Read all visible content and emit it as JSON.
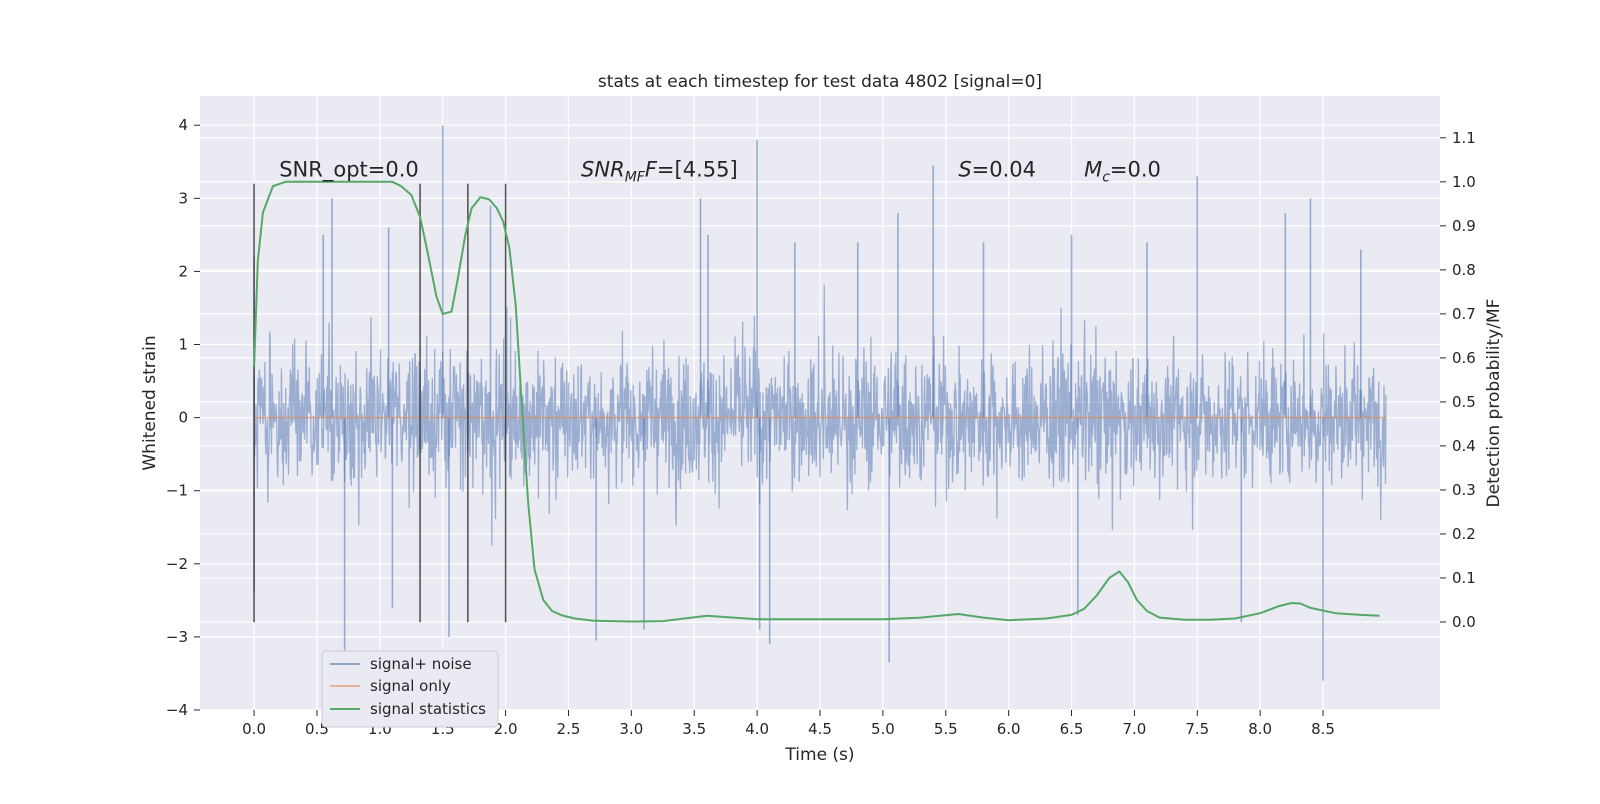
{
  "chart_data": {
    "type": "line",
    "title": "stats at each timestep for test data 4802 [signal=0]",
    "xlabel": "Time (s)",
    "ylabel": "Whitened strain",
    "y2label": "Detection probability/MF",
    "xlim": [
      -0.43,
      9.43
    ],
    "ylim": [
      -4.0,
      4.4
    ],
    "y2lim": [
      -0.2,
      1.195
    ],
    "x_ticks": [
      0.0,
      0.5,
      1.0,
      1.5,
      2.0,
      2.5,
      3.0,
      3.5,
      4.0,
      4.5,
      5.0,
      5.5,
      6.0,
      6.5,
      7.0,
      7.5,
      8.0,
      8.5
    ],
    "x_tick_labels": [
      "0.0",
      "0.5",
      "1.0",
      "1.5",
      "2.0",
      "2.5",
      "3.0",
      "3.5",
      "4.0",
      "4.5",
      "5.0",
      "5.5",
      "6.0",
      "6.5",
      "7.0",
      "7.5",
      "8.0",
      "8.5"
    ],
    "y_ticks": [
      -4,
      -3,
      -2,
      -1,
      0,
      1,
      2,
      3,
      4
    ],
    "y_tick_labels": [
      "−4",
      "−3",
      "−2",
      "−1",
      "0",
      "1",
      "2",
      "3",
      "4"
    ],
    "y2_ticks": [
      0.0,
      0.1,
      0.2,
      0.3,
      0.4,
      0.5,
      0.6,
      0.7,
      0.8,
      0.9,
      1.0,
      1.1
    ],
    "y2_tick_labels": [
      "0.0",
      "0.1",
      "0.2",
      "0.3",
      "0.4",
      "0.5",
      "0.6",
      "0.7",
      "0.8",
      "0.9",
      "1.0",
      "1.1"
    ],
    "grid": true,
    "legend_position": "lower-left",
    "colors": {
      "noise": "#4c72b0",
      "signal_only": "#dd8452",
      "statistics": "#55a868",
      "segment_lines": "#333333",
      "axes_background": "#eaeaf2",
      "grid": "#ffffff"
    },
    "series": [
      {
        "name": "signal+ noise",
        "axis": "left",
        "x_range": [
          0.0,
          9.0
        ],
        "style": "dense noise",
        "envelope_typical": [
          -1.4,
          1.4
        ],
        "spikes": [
          {
            "x": 0.0,
            "y": 2.2
          },
          {
            "x": 0.0,
            "y": -2.4
          },
          {
            "x": 0.55,
            "y": 2.5
          },
          {
            "x": 0.62,
            "y": 3.0
          },
          {
            "x": 0.72,
            "y": -3.2
          },
          {
            "x": 1.07,
            "y": 2.6
          },
          {
            "x": 1.1,
            "y": -2.6
          },
          {
            "x": 1.5,
            "y": 4.0
          },
          {
            "x": 1.55,
            "y": -3.0
          },
          {
            "x": 1.88,
            "y": 2.9
          },
          {
            "x": 2.72,
            "y": -3.05
          },
          {
            "x": 3.1,
            "y": -2.9
          },
          {
            "x": 3.55,
            "y": 3.0
          },
          {
            "x": 3.61,
            "y": 2.5
          },
          {
            "x": 4.0,
            "y": 3.8
          },
          {
            "x": 4.02,
            "y": -2.9
          },
          {
            "x": 4.1,
            "y": -3.1
          },
          {
            "x": 4.3,
            "y": 2.4
          },
          {
            "x": 4.8,
            "y": 2.4
          },
          {
            "x": 5.05,
            "y": -3.35
          },
          {
            "x": 5.12,
            "y": 2.8
          },
          {
            "x": 5.4,
            "y": 3.45
          },
          {
            "x": 5.8,
            "y": 2.4
          },
          {
            "x": 6.5,
            "y": 2.5
          },
          {
            "x": 6.55,
            "y": -2.7
          },
          {
            "x": 7.1,
            "y": 2.4
          },
          {
            "x": 7.5,
            "y": 3.3
          },
          {
            "x": 7.85,
            "y": -2.8
          },
          {
            "x": 8.2,
            "y": 2.8
          },
          {
            "x": 8.4,
            "y": 3.0
          },
          {
            "x": 8.5,
            "y": -3.6
          },
          {
            "x": 8.8,
            "y": 2.3
          }
        ]
      },
      {
        "name": "signal only",
        "axis": "left",
        "x": [
          0.0,
          9.0
        ],
        "y": [
          0.0,
          0.0
        ]
      },
      {
        "name": "signal statistics",
        "axis": "right",
        "x": [
          0.0,
          0.03,
          0.07,
          0.15,
          0.25,
          0.4,
          0.6,
          0.8,
          1.0,
          1.1,
          1.17,
          1.25,
          1.32,
          1.38,
          1.45,
          1.5,
          1.57,
          1.62,
          1.68,
          1.73,
          1.8,
          1.87,
          1.93,
          1.98,
          2.03,
          2.08,
          2.13,
          2.18,
          2.23,
          2.3,
          2.37,
          2.45,
          2.55,
          2.7,
          3.0,
          3.25,
          3.6,
          4.0,
          4.5,
          5.0,
          5.3,
          5.6,
          5.8,
          6.0,
          6.3,
          6.5,
          6.6,
          6.7,
          6.8,
          6.88,
          6.95,
          7.02,
          7.1,
          7.2,
          7.4,
          7.6,
          7.8,
          8.0,
          8.15,
          8.25,
          8.32,
          8.4,
          8.6,
          8.8,
          8.95
        ],
        "y": [
          0.58,
          0.82,
          0.93,
          0.99,
          1.0,
          1.0,
          1.0,
          1.0,
          1.0,
          1.0,
          0.99,
          0.97,
          0.92,
          0.84,
          0.74,
          0.7,
          0.705,
          0.78,
          0.88,
          0.94,
          0.965,
          0.96,
          0.94,
          0.91,
          0.85,
          0.72,
          0.49,
          0.27,
          0.12,
          0.05,
          0.025,
          0.015,
          0.008,
          0.003,
          0.001,
          0.002,
          0.014,
          0.006,
          0.006,
          0.006,
          0.01,
          0.018,
          0.01,
          0.004,
          0.008,
          0.016,
          0.03,
          0.06,
          0.1,
          0.115,
          0.09,
          0.05,
          0.025,
          0.01,
          0.005,
          0.005,
          0.008,
          0.02,
          0.036,
          0.043,
          0.042,
          0.032,
          0.02,
          0.016,
          0.014
        ]
      }
    ],
    "vertical_lines": [
      {
        "x": 0.0,
        "y_from": -2.8,
        "y_to": 3.2
      },
      {
        "x": 1.32,
        "y_from": -2.8,
        "y_to": 3.2
      },
      {
        "x": 1.7,
        "y_from": -2.8,
        "y_to": 3.2
      },
      {
        "x": 2.0,
        "y_from": -2.8,
        "y_to": 3.2
      }
    ],
    "annotations": [
      {
        "text": "SNR_opt=0.0",
        "x": 0.2,
        "y": 3.3
      },
      {
        "text": "SNR_MF=[4.55]",
        "x": 2.6,
        "y": 3.3,
        "main": "SNR",
        "sub": "MF",
        "tail": "F=[4.55]",
        "italic": true
      },
      {
        "text": "S=0.04",
        "x": 5.6,
        "y": 3.3,
        "main": "S",
        "tail": "=0.04",
        "italic": true
      },
      {
        "text": "M_c=0.0",
        "x": 6.6,
        "y": 3.3,
        "main": "M",
        "sub": "c",
        "tail": "=0.0",
        "italic": true
      }
    ],
    "legend": [
      {
        "label": "signal+ noise",
        "color": "#4c72b0"
      },
      {
        "label": "signal only",
        "color": "#dd8452"
      },
      {
        "label": "signal statistics",
        "color": "#55a868"
      }
    ]
  }
}
